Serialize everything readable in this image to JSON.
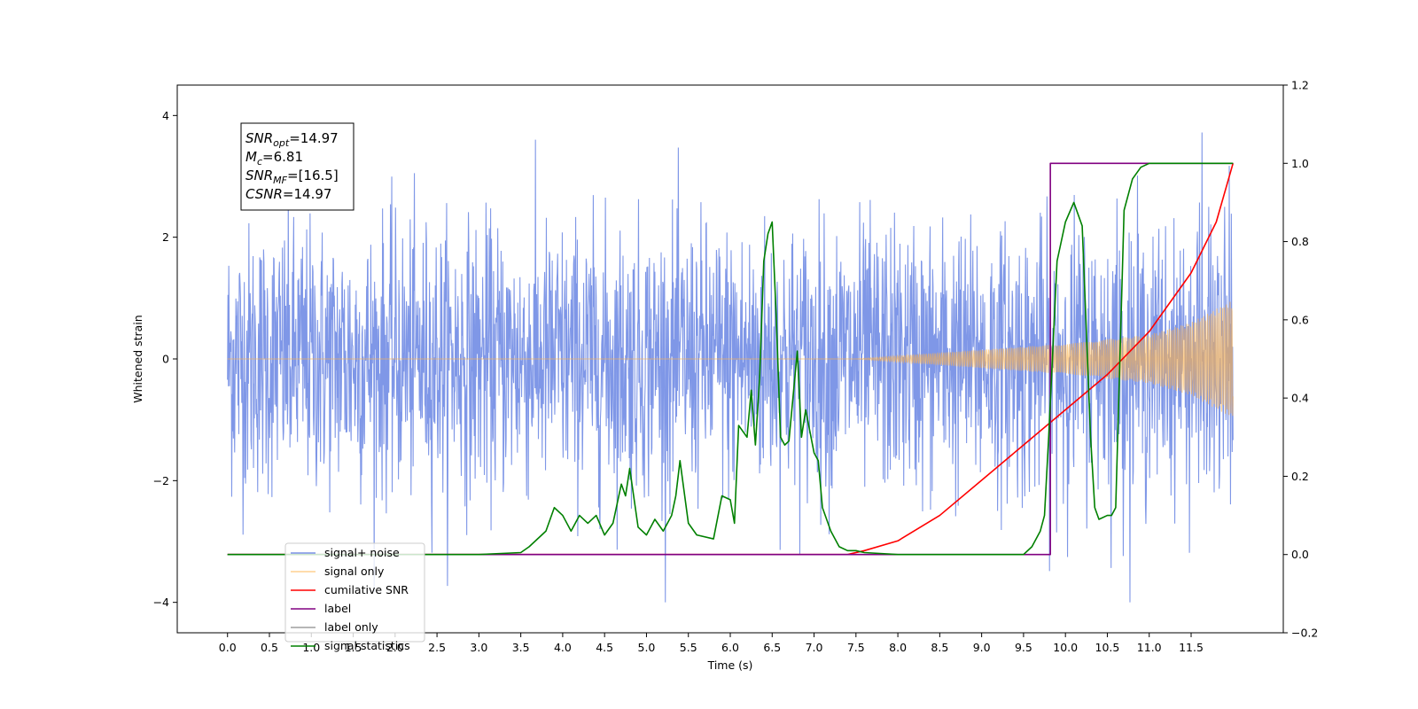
{
  "chart_data": {
    "type": "line",
    "xlabel": "Time (s)",
    "ylabel": "Whitened strain",
    "xlim": [
      -0.6,
      12.6
    ],
    "ylim": [
      -4.5,
      4.5
    ],
    "y2lim": [
      -0.2,
      1.2
    ],
    "xticks": [
      "0.0",
      "0.5",
      "1.0",
      "1.5",
      "2.0",
      "2.5",
      "3.0",
      "3.5",
      "4.0",
      "4.5",
      "5.0",
      "5.5",
      "6.0",
      "6.5",
      "7.0",
      "7.5",
      "8.0",
      "8.5",
      "9.0",
      "9.5",
      "10.0",
      "10.5",
      "11.0",
      "11.5"
    ],
    "yticks": [
      "4",
      "2",
      "0",
      "−2",
      "−4"
    ],
    "y2ticks": [
      "1.2",
      "1.0",
      "0.8",
      "0.6",
      "0.4",
      "0.2",
      "0.0",
      "−0.2"
    ],
    "annotation": {
      "lines": [
        {
          "var": "SNR",
          "sub": "opt",
          "value": "=14.97"
        },
        {
          "var": "M",
          "sub": "c",
          "value": "=6.81"
        },
        {
          "var": "SNR",
          "sub": "MF",
          "value": "=[16.5]"
        },
        {
          "var": "CSNR",
          "sub": "",
          "value": "=14.97"
        }
      ]
    },
    "series": [
      {
        "name": "signal+ noise",
        "color": "#7891e6",
        "axis": "left",
        "noise_sigma": 1.1,
        "x_range": [
          0,
          12
        ],
        "peak_max": 4.1
      },
      {
        "name": "signal only",
        "color": "#ffb347",
        "axis": "left",
        "envelope": {
          "x": [
            0,
            7.5,
            8.0,
            9.0,
            10.0,
            11.0,
            11.5,
            12.0
          ],
          "amp": [
            0,
            0,
            0.05,
            0.15,
            0.25,
            0.4,
            0.6,
            0.97
          ]
        }
      },
      {
        "name": "cumilative SNR",
        "color": "#ff0000",
        "axis": "right",
        "x": [
          0,
          7.4,
          7.6,
          8.0,
          8.5,
          9.0,
          9.5,
          10.0,
          10.5,
          11.0,
          11.5,
          11.8,
          12.0
        ],
        "y": [
          0.0,
          0.0,
          0.01,
          0.035,
          0.1,
          0.19,
          0.28,
          0.37,
          0.46,
          0.57,
          0.72,
          0.85,
          1.0
        ]
      },
      {
        "name": "label",
        "color": "#800080",
        "axis": "right",
        "x": [
          0,
          9.82,
          9.82,
          12.0
        ],
        "y": [
          0.0,
          0.0,
          1.0,
          1.0
        ]
      },
      {
        "name": "label only",
        "color": "#9e9e9e",
        "axis": "right",
        "hidden": true,
        "x": [],
        "y": []
      },
      {
        "name": "signal statistics",
        "color": "#008000",
        "axis": "right",
        "x": [
          0,
          3.0,
          3.5,
          3.6,
          3.8,
          3.9,
          4.0,
          4.1,
          4.2,
          4.3,
          4.4,
          4.5,
          4.6,
          4.7,
          4.75,
          4.8,
          4.9,
          5.0,
          5.1,
          5.2,
          5.3,
          5.35,
          5.4,
          5.5,
          5.6,
          5.8,
          5.9,
          6.0,
          6.05,
          6.1,
          6.2,
          6.25,
          6.3,
          6.35,
          6.4,
          6.45,
          6.5,
          6.55,
          6.6,
          6.65,
          6.7,
          6.8,
          6.85,
          6.9,
          7.0,
          7.05,
          7.1,
          7.2,
          7.3,
          7.4,
          7.5,
          7.6,
          8.0,
          9.0,
          9.5,
          9.6,
          9.7,
          9.75,
          9.8,
          9.9,
          10.0,
          10.1,
          10.2,
          10.3,
          10.35,
          10.4,
          10.5,
          10.55,
          10.6,
          10.65,
          10.7,
          10.8,
          10.9,
          11.0,
          12.0
        ],
        "y": [
          0.0,
          0.0,
          0.005,
          0.02,
          0.06,
          0.12,
          0.1,
          0.06,
          0.1,
          0.08,
          0.1,
          0.05,
          0.08,
          0.18,
          0.15,
          0.22,
          0.07,
          0.05,
          0.09,
          0.06,
          0.1,
          0.15,
          0.24,
          0.08,
          0.05,
          0.04,
          0.15,
          0.14,
          0.08,
          0.33,
          0.3,
          0.42,
          0.28,
          0.45,
          0.75,
          0.82,
          0.85,
          0.6,
          0.3,
          0.28,
          0.29,
          0.52,
          0.3,
          0.37,
          0.26,
          0.24,
          0.12,
          0.06,
          0.02,
          0.01,
          0.01,
          0.005,
          0.0,
          0.0,
          0.0,
          0.02,
          0.06,
          0.1,
          0.3,
          0.75,
          0.85,
          0.9,
          0.84,
          0.3,
          0.12,
          0.09,
          0.1,
          0.1,
          0.12,
          0.5,
          0.88,
          0.96,
          0.99,
          1.0,
          1.0
        ]
      }
    ],
    "legend": {
      "placement": "lower-left",
      "entries": [
        "signal+ noise",
        "signal only",
        "cumilative SNR",
        "label",
        "label only",
        "signal statistics"
      ]
    }
  }
}
